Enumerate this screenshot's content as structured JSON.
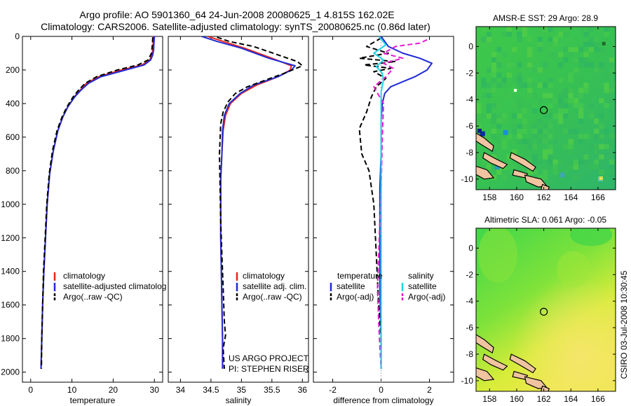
{
  "header": {
    "line1": "Argo profile: AO 5901360_64 24-Jun-2008 20080625_1 4.815S 162.02E",
    "line2": "Climatology: CARS2006. Satellite-adjusted climatology: synTS_20080625.nc (0.86d later)"
  },
  "credit": {
    "project": "US ARGO PROJECT",
    "pi": "PI: STEPHEN RISER",
    "side_stamp": "CSIRO 03-Jul-2008 10:30:45"
  },
  "colors": {
    "climatology": "#e8231a",
    "satellite": "#1f2bd6",
    "argo": "#000000",
    "sal_satellite": "#22d3e6",
    "sal_argo": "#e41ad1",
    "land": "#f0c4a0"
  },
  "chart_data": [
    {
      "type": "line",
      "id": "temperature",
      "xlabel": "temperature",
      "ylabel": "",
      "xlim": [
        -2,
        32
      ],
      "ylim": [
        2060,
        0
      ],
      "xticks": [
        0,
        10,
        20,
        30
      ],
      "yticks": [
        0,
        200,
        400,
        600,
        800,
        1000,
        1200,
        1400,
        1600,
        1800,
        2000
      ],
      "legend": [
        "climatology",
        "satellite-adjusted climatolog",
        "Argo(..raw -QC)"
      ],
      "series": [
        {
          "name": "climatology",
          "style": "solid",
          "color": "climatology",
          "x": [
            29.8,
            29.7,
            29.6,
            29.4,
            28.9,
            27,
            22,
            16.5,
            13.5,
            12,
            10.6,
            9,
            7.8,
            6.6,
            5.5,
            4.6,
            4,
            3.6,
            3.2,
            2.9,
            2.7,
            2.5
          ],
          "y": [
            0,
            40,
            80,
            110,
            140,
            170,
            200,
            240,
            280,
            320,
            360,
            420,
            480,
            560,
            680,
            820,
            1000,
            1200,
            1400,
            1600,
            1800,
            1980
          ]
        },
        {
          "name": "satellite",
          "style": "solid",
          "color": "satellite",
          "x": [
            30,
            29.9,
            29.8,
            29.6,
            29.1,
            27.5,
            23,
            17,
            14,
            12.2,
            10.7,
            9,
            7.8,
            6.6,
            5.5,
            4.6,
            4,
            3.6,
            3.2,
            2.9,
            2.7,
            2.5
          ],
          "y": [
            0,
            40,
            80,
            110,
            140,
            170,
            200,
            240,
            280,
            320,
            360,
            420,
            480,
            560,
            680,
            820,
            1000,
            1200,
            1400,
            1600,
            1800,
            1980
          ]
        },
        {
          "name": "argo",
          "style": "dash",
          "color": "argo",
          "x": [
            29.6,
            29.5,
            29.3,
            28.5,
            26,
            21,
            16,
            13.2,
            11.6,
            10.3,
            8.8,
            7.6,
            6.4,
            5.3,
            4.5,
            3.9,
            3.5,
            3.1,
            2.9,
            2.7,
            2.6
          ],
          "y": [
            5,
            50,
            100,
            140,
            170,
            200,
            240,
            280,
            320,
            360,
            420,
            480,
            560,
            680,
            820,
            1000,
            1200,
            1400,
            1600,
            1800,
            1980
          ]
        }
      ]
    },
    {
      "type": "line",
      "id": "salinity",
      "xlabel": "salinity",
      "ylabel": "",
      "xlim": [
        33.8,
        36.1
      ],
      "ylim": [
        2060,
        0
      ],
      "xticks": [
        34,
        34.5,
        35,
        35.5,
        36
      ],
      "yticks": [
        0,
        200,
        400,
        600,
        800,
        1000,
        1200,
        1400,
        1600,
        1800,
        2000
      ],
      "legend": [
        "climatology",
        "satellite adj. clim.",
        "Argo(..raw -QC)"
      ],
      "series": [
        {
          "name": "climatology",
          "style": "solid",
          "color": "climatology",
          "x": [
            34.45,
            34.7,
            35.05,
            35.5,
            35.82,
            35.8,
            35.6,
            35.25,
            35.0,
            34.82,
            34.74,
            34.7,
            34.68,
            34.66,
            34.66,
            34.66,
            34.67,
            34.68,
            34.69,
            34.69
          ],
          "y": [
            0,
            30,
            70,
            130,
            175,
            200,
            240,
            290,
            340,
            400,
            470,
            560,
            700,
            850,
            1000,
            1200,
            1400,
            1600,
            1800,
            1980
          ]
        },
        {
          "name": "satellite",
          "style": "solid",
          "color": "satellite",
          "x": [
            34.35,
            34.6,
            35.0,
            35.45,
            35.88,
            35.82,
            35.6,
            35.2,
            34.98,
            34.8,
            34.72,
            34.69,
            34.68,
            34.66,
            34.66,
            34.66,
            34.67,
            34.68,
            34.69,
            34.69
          ],
          "y": [
            0,
            30,
            70,
            130,
            175,
            200,
            240,
            290,
            340,
            400,
            470,
            560,
            700,
            850,
            1000,
            1200,
            1400,
            1600,
            1800,
            1980
          ]
        },
        {
          "name": "argo",
          "style": "dash",
          "color": "argo",
          "x": [
            34.6,
            34.8,
            35.2,
            35.6,
            35.92,
            36.0,
            35.9,
            35.7,
            35.4,
            35.1,
            34.9,
            34.78,
            34.7,
            34.66,
            34.64,
            34.65,
            34.66,
            34.68,
            34.7,
            34.72,
            34.74,
            34.7,
            34.72
          ],
          "y": [
            5,
            30,
            60,
            110,
            150,
            175,
            190,
            220,
            260,
            300,
            340,
            390,
            450,
            520,
            700,
            900,
            1100,
            1300,
            1500,
            1700,
            1780,
            1860,
            1980
          ]
        }
      ]
    },
    {
      "type": "line",
      "id": "difference",
      "xlabel": "difference from climatology",
      "ylabel": "",
      "xlim": [
        -2.8,
        3.0
      ],
      "ylim": [
        2060,
        0
      ],
      "xticks": [
        -2,
        0,
        2
      ],
      "yticks": [
        0,
        200,
        400,
        600,
        800,
        1000,
        1200,
        1400,
        1600,
        1800,
        2000
      ],
      "legend": [
        "temperature",
        "satellite",
        "Argo(-adj)",
        "salinity",
        "satellite",
        "Argo(-adj)"
      ],
      "series": [
        {
          "name": "temperature satellite",
          "style": "solid",
          "color": "satellite",
          "x": [
            0,
            0.3,
            0.9,
            1.6,
            2.1,
            1.9,
            1.4,
            0.9,
            0.4,
            0.15,
            0.05,
            0,
            0,
            -0.05,
            -0.05,
            -0.05,
            0,
            0
          ],
          "y": [
            0,
            60,
            100,
            130,
            160,
            200,
            240,
            270,
            300,
            340,
            400,
            500,
            700,
            900,
            1200,
            1500,
            1800,
            1980
          ]
        },
        {
          "name": "temperature argo",
          "style": "dash",
          "color": "argo",
          "x": [
            0,
            -0.6,
            0.3,
            -0.9,
            0.6,
            -0.7,
            0.4,
            -0.3,
            0.2,
            -0.2,
            -0.4,
            -0.6,
            -0.9,
            -0.8,
            -0.5,
            -0.3,
            -0.2,
            -0.1,
            0,
            0
          ],
          "y": [
            10,
            60,
            100,
            130,
            150,
            170,
            190,
            210,
            250,
            300,
            360,
            450,
            550,
            700,
            800,
            1000,
            1300,
            1600,
            1800,
            1980
          ]
        },
        {
          "name": "salinity satellite",
          "style": "solid",
          "color": "sal_satellite",
          "x": [
            -0.1,
            0.2,
            -0.3,
            0.1,
            -0.2,
            0.05,
            0.1,
            0,
            0,
            0,
            0,
            0,
            0,
            0,
            0
          ],
          "y": [
            0,
            50,
            100,
            140,
            180,
            220,
            260,
            330,
            420,
            600,
            800,
            1100,
            1400,
            1700,
            1980
          ]
        },
        {
          "name": "salinity argo",
          "style": "dash",
          "color": "sal_argo",
          "x": [
            1.9,
            1.6,
            0.6,
            0.1,
            0.9,
            0.1,
            0.5,
            0.2,
            -0.3,
            0.1,
            0.05,
            0,
            -0.1,
            -0.15,
            -0.1,
            -0.05,
            0
          ],
          "y": [
            20,
            40,
            60,
            100,
            130,
            160,
            190,
            240,
            300,
            400,
            600,
            900,
            1300,
            1500,
            1700,
            1850,
            1980
          ]
        }
      ]
    },
    {
      "type": "heatmap",
      "id": "sst_map",
      "title": "AMSR-E SST: 29 Argo: 28.9",
      "xlim": [
        157,
        167.3
      ],
      "ylim": [
        -10.8,
        1.5
      ],
      "xticks": [
        158,
        160,
        162,
        164,
        166
      ],
      "yticks": [
        0,
        -2,
        -4,
        -6,
        -8,
        -10
      ],
      "marker": {
        "x": 162,
        "y": -4.8
      }
    },
    {
      "type": "heatmap",
      "id": "sla_map",
      "title": "Altimetric SLA: 0.061 Argo: -0.05",
      "xlim": [
        157,
        167.3
      ],
      "ylim": [
        -10.8,
        1.5
      ],
      "xticks": [
        158,
        160,
        162,
        164,
        166
      ],
      "yticks": [
        0,
        -2,
        -4,
        -6,
        -8,
        -10
      ],
      "marker": {
        "x": 162,
        "y": -4.8
      }
    }
  ]
}
